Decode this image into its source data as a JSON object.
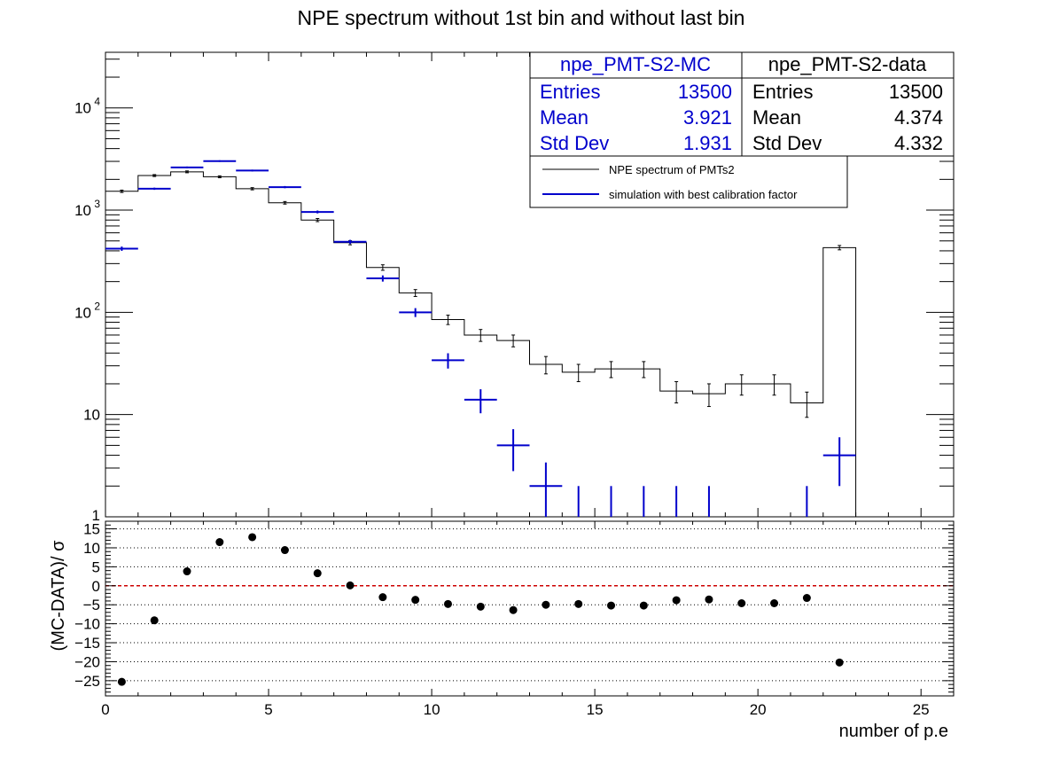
{
  "title": "NPE spectrum without 1st bin and without last bin",
  "colors": {
    "data": "#000000",
    "mc": "#0000cc",
    "zero_line": "#cc0000",
    "frame": "#000000"
  },
  "stats": {
    "mc": {
      "name": "npe_PMT-S2-MC",
      "entries_label": "Entries",
      "entries": "13500",
      "mean_label": "Mean",
      "mean": "3.921",
      "std_label": "Std Dev",
      "std": "1.931"
    },
    "data": {
      "name": "npe_PMT-S2-data",
      "entries_label": "Entries",
      "entries": "13500",
      "mean_label": "Mean",
      "mean": "4.374",
      "std_label": "Std Dev",
      "std": "4.332"
    }
  },
  "legend": [
    {
      "label": "NPE spectrum of PMTs2",
      "color": "#000000"
    },
    {
      "label": "simulation with best calibration factor",
      "color": "#0000cc"
    }
  ],
  "chart_data": [
    {
      "type": "line",
      "subtype": "step-histogram",
      "scale": "log",
      "xlim": [
        0,
        26
      ],
      "ylim": [
        1,
        35000
      ],
      "y_tick_labels": [
        "1",
        "10",
        "10^2",
        "10^3",
        "10^4"
      ],
      "y_tick_values": [
        1,
        10,
        100,
        1000,
        10000
      ],
      "series": [
        {
          "name": "npe_PMT-S2-data",
          "x": [
            0.5,
            1.5,
            2.5,
            3.5,
            4.5,
            5.5,
            6.5,
            7.5,
            8.5,
            9.5,
            10.5,
            11.5,
            12.5,
            13.5,
            14.5,
            15.5,
            16.5,
            17.5,
            18.5,
            19.5,
            20.5,
            21.5,
            22.5
          ],
          "values": [
            1530,
            2180,
            2370,
            2120,
            1620,
            1180,
            800,
            480,
            275,
            155,
            85,
            60,
            53,
            31,
            26,
            28,
            28,
            17,
            16,
            20,
            20,
            13,
            430
          ],
          "errors": [
            40,
            47,
            49,
            46,
            40,
            34,
            28,
            22,
            17,
            12,
            9,
            8,
            7,
            6,
            5,
            5,
            5,
            4,
            4,
            4.5,
            4.5,
            3.6,
            21
          ]
        },
        {
          "name": "npe_PMT-S2-MC",
          "x": [
            0.5,
            1.5,
            2.5,
            3.5,
            4.5,
            5.5,
            6.5,
            7.5,
            8.5,
            9.5,
            10.5,
            11.5,
            12.5,
            13.5,
            14.5,
            15.5,
            16.5,
            17.5,
            18.5,
            19.5,
            20.5,
            21.5,
            22.5
          ],
          "values": [
            420,
            1620,
            2620,
            3020,
            2440,
            1680,
            960,
            490,
            215,
            100,
            34,
            14,
            5,
            2,
            1,
            1,
            1,
            1,
            1,
            0,
            0,
            1,
            4
          ],
          "errors": [
            20,
            40,
            51,
            55,
            49,
            41,
            31,
            22,
            15,
            10,
            5.8,
            3.7,
            2.2,
            1.4,
            1,
            1,
            1,
            1,
            1,
            0,
            0,
            1,
            2
          ]
        }
      ]
    },
    {
      "type": "scatter",
      "ylabel": "(MC-DATA)/ σ",
      "xlabel": "number of p.e",
      "xlim": [
        0,
        26
      ],
      "ylim": [
        -29,
        17
      ],
      "x_tick_labels": [
        "0",
        "5",
        "10",
        "15",
        "20",
        "25"
      ],
      "y_tick_labels": [
        "15",
        "10",
        "5",
        "0",
        "−5",
        "−10",
        "−15",
        "−20",
        "−25"
      ],
      "grid": true,
      "zero_line": 0,
      "series": [
        {
          "x": [
            0.5,
            1.5,
            2.5,
            3.5,
            4.5,
            5.5,
            6.5,
            7.5,
            8.5,
            9.5,
            10.5,
            11.5,
            12.5,
            13.5,
            14.5,
            15.5,
            16.5,
            17.5,
            18.5,
            19.5,
            20.5,
            21.5,
            22.5
          ],
          "values": [
            -25.3,
            -9.1,
            3.8,
            11.5,
            12.8,
            9.4,
            3.3,
            0.1,
            -3.0,
            -3.7,
            -4.8,
            -5.5,
            -6.4,
            -5.0,
            -4.8,
            -5.2,
            -5.2,
            -3.8,
            -3.6,
            -4.6,
            -4.6,
            -3.2,
            -20.2
          ]
        }
      ]
    }
  ]
}
